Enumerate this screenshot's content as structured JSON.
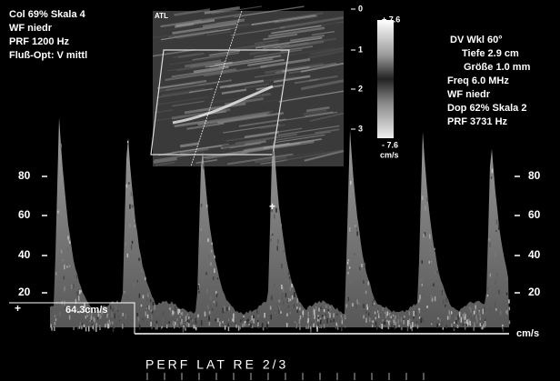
{
  "header": {
    "logo": "ATL",
    "left_info": [
      "Col 69%  Skala 4",
      "WF niedr",
      "PRF 1200  Hz",
      "Fluß-Opt: V mittl"
    ],
    "right_info": [
      "DV Wkl 60°",
      "Tiefe 2.9  cm",
      "Größe 1.0  mm",
      "Freq 6.0  MHz",
      "WF niedr",
      "Dop 62%  Skala 2",
      "PRF 3731  Hz"
    ]
  },
  "depth_scale": [
    "0",
    "1",
    "2",
    "3"
  ],
  "color_bar": {
    "top": "+ 7.6",
    "bottom": "- 7.6",
    "unit": "cm/s"
  },
  "spectrum": {
    "scale_left": [
      "80",
      "60",
      "40",
      "20"
    ],
    "scale_right": [
      "80",
      "60",
      "40",
      "20"
    ],
    "measurement": "64.3cm/s",
    "unit": "cm/s"
  },
  "footer": "PERF  LAT  RE  2/3"
}
